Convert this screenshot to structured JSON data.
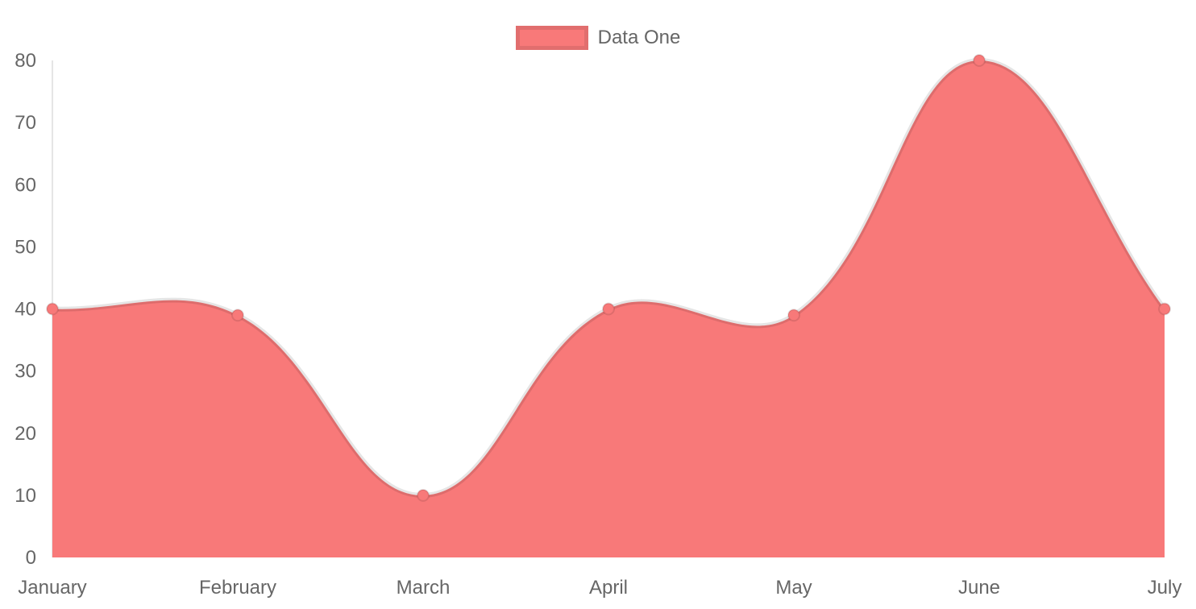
{
  "legend": {
    "items": [
      {
        "label": "Data One",
        "swatch_color": "#f87979"
      }
    ]
  },
  "chart_data": {
    "type": "area",
    "title": "",
    "categories": [
      "January",
      "February",
      "March",
      "April",
      "May",
      "June",
      "July"
    ],
    "series": [
      {
        "name": "Data One",
        "values": [
          40,
          39,
          10,
          40,
          39,
          80,
          40
        ],
        "fill_color": "#f87979",
        "line_color": "rgba(0,0,0,0.1)",
        "point_color": "#f87979",
        "point_border_color": "rgba(0,0,0,0.1)"
      }
    ],
    "xlabel": "",
    "ylabel": "",
    "ylim": [
      0,
      80
    ],
    "yticks": [
      0,
      10,
      20,
      30,
      40,
      50,
      60,
      70,
      80
    ],
    "grid": false,
    "legend_position": "top",
    "curve": "cubic-bezier-tension-0.4",
    "axis_color": "rgba(0,0,0,0.1)",
    "tick_text_color": "#666666"
  }
}
